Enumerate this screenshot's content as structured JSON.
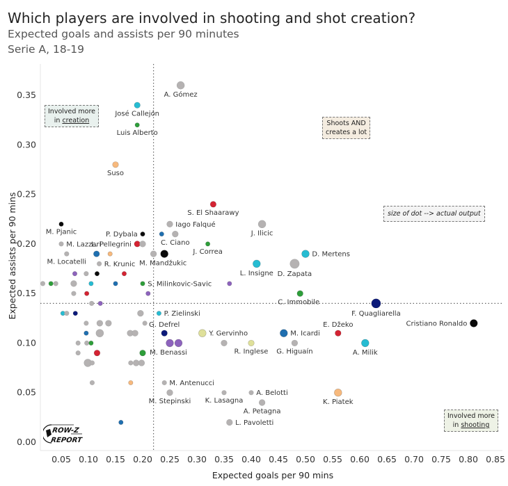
{
  "header": {
    "title": "Which players are involved in shooting and shot creation?",
    "subtitle": "Expected goals and assists per 90 minutes",
    "season": "Serie A, 18-19"
  },
  "annotations": {
    "creation": {
      "line1": "Involved more",
      "prefix": "in ",
      "emph": "creation"
    },
    "both": {
      "line1": "Shoots AND",
      "line2": "creates a lot"
    },
    "size_note": "size of dot --> actual output",
    "shooting": {
      "line1": "Involved more",
      "prefix": "in ",
      "emph": "shooting"
    }
  },
  "logo": {
    "line1": "ROW-Z",
    "line2": "REPORT"
  },
  "colors": {
    "grey": "#b5b2b2",
    "cyan": "#26bcd2",
    "green": "#2e9e3a",
    "red": "#d42332",
    "black": "#0a0a0a",
    "blue": "#1f6fb0",
    "navy": "#0c1a7a",
    "purple": "#8d63bd",
    "orange": "#f7b97d",
    "yellow": "#dfe09a"
  },
  "chart_data": {
    "type": "scatter",
    "title": "Which players are involved in shooting and shot creation?",
    "xlabel": "Expected goals per 90 mins",
    "ylabel": "Expected assists per 90 mins",
    "xlim": [
      0.0,
      0.86
    ],
    "ylim": [
      0.0,
      0.37
    ],
    "xticks": [
      "0.05",
      "0.10",
      "0.15",
      "0.20",
      "0.25",
      "0.30",
      "0.35",
      "0.40",
      "0.45",
      "0.50",
      "0.55",
      "0.60",
      "0.65",
      "0.70",
      "0.75",
      "0.80",
      "0.85"
    ],
    "yticks": [
      "0.00",
      "0.05",
      "0.10",
      "0.15",
      "0.20",
      "0.25",
      "0.30",
      "0.35"
    ],
    "reference_lines": {
      "x_avg": 0.22,
      "y_avg": 0.14
    },
    "grid": false,
    "points": [
      {
        "name": "A. Gómez",
        "x": 0.27,
        "y": 0.36,
        "size": "m",
        "color": "grey",
        "label_pos": "below"
      },
      {
        "name": "José Callejón",
        "x": 0.19,
        "y": 0.34,
        "size": "s",
        "color": "cyan",
        "label_pos": "below"
      },
      {
        "name": "Luis Alberto",
        "x": 0.19,
        "y": 0.32,
        "size": "xs",
        "color": "green",
        "label_pos": "below"
      },
      {
        "name": "Suso",
        "x": 0.15,
        "y": 0.28,
        "size": "s",
        "color": "orange",
        "label_pos": "below"
      },
      {
        "name": "S. El Shaarawy",
        "x": 0.33,
        "y": 0.24,
        "size": "s",
        "color": "red",
        "label_pos": "below"
      },
      {
        "name": "Iago Falqué",
        "x": 0.25,
        "y": 0.22,
        "size": "s",
        "color": "grey",
        "label_pos": "right"
      },
      {
        "name": "J. Ilicic",
        "x": 0.42,
        "y": 0.22,
        "size": "m",
        "color": "grey",
        "label_pos": "below"
      },
      {
        "name": "M. Pjanic",
        "x": 0.05,
        "y": 0.22,
        "size": "xs",
        "color": "black",
        "label_pos": "below"
      },
      {
        "name": "P. Dybala",
        "x": 0.2,
        "y": 0.21,
        "size": "xs",
        "color": "black",
        "label_pos": "left"
      },
      {
        "name": "",
        "x": 0.235,
        "y": 0.21,
        "size": "xs",
        "color": "blue",
        "label_pos": "none"
      },
      {
        "name": "C. Ciano",
        "x": 0.26,
        "y": 0.21,
        "size": "s",
        "color": "grey",
        "label_pos": "below"
      },
      {
        "name": "M. Lazzari",
        "x": 0.05,
        "y": 0.2,
        "size": "xs",
        "color": "grey",
        "label_pos": "right"
      },
      {
        "name": "L. Pellegrini",
        "x": 0.19,
        "y": 0.2,
        "size": "s",
        "color": "red",
        "label_pos": "left"
      },
      {
        "name": "",
        "x": 0.2,
        "y": 0.2,
        "size": "s",
        "color": "grey",
        "label_pos": "none"
      },
      {
        "name": "J. Correa",
        "x": 0.32,
        "y": 0.2,
        "size": "xs",
        "color": "green",
        "label_pos": "below"
      },
      {
        "name": "M. Locatelli",
        "x": 0.06,
        "y": 0.19,
        "size": "xs",
        "color": "grey",
        "label_pos": "below"
      },
      {
        "name": "",
        "x": 0.115,
        "y": 0.19,
        "size": "s",
        "color": "blue",
        "label_pos": "none"
      },
      {
        "name": "",
        "x": 0.14,
        "y": 0.19,
        "size": "xs",
        "color": "orange",
        "label_pos": "none"
      },
      {
        "name": "",
        "x": 0.22,
        "y": 0.19,
        "size": "s",
        "color": "grey",
        "label_pos": "none"
      },
      {
        "name": "M. Mandžukic",
        "x": 0.24,
        "y": 0.19,
        "size": "m",
        "color": "black",
        "label_pos": "below-left"
      },
      {
        "name": "D. Mertens",
        "x": 0.5,
        "y": 0.19,
        "size": "m",
        "color": "cyan",
        "label_pos": "right"
      },
      {
        "name": "R. Krunic",
        "x": 0.12,
        "y": 0.18,
        "size": "xs",
        "color": "grey",
        "label_pos": "right"
      },
      {
        "name": "L. Insigne",
        "x": 0.41,
        "y": 0.18,
        "size": "m",
        "color": "cyan",
        "label_pos": "below"
      },
      {
        "name": "D. Zapata",
        "x": 0.48,
        "y": 0.18,
        "size": "l",
        "color": "grey",
        "label_pos": "below"
      },
      {
        "name": "",
        "x": 0.075,
        "y": 0.17,
        "size": "xs",
        "color": "purple",
        "label_pos": "none"
      },
      {
        "name": "",
        "x": 0.096,
        "y": 0.17,
        "size": "xs",
        "color": "grey",
        "label_pos": "none"
      },
      {
        "name": "",
        "x": 0.116,
        "y": 0.17,
        "size": "xs",
        "color": "black",
        "label_pos": "none"
      },
      {
        "name": "",
        "x": 0.166,
        "y": 0.17,
        "size": "xs",
        "color": "red",
        "label_pos": "none"
      },
      {
        "name": "",
        "x": 0.016,
        "y": 0.16,
        "size": "xs",
        "color": "grey",
        "label_pos": "none"
      },
      {
        "name": "",
        "x": 0.031,
        "y": 0.16,
        "size": "xs",
        "color": "green",
        "label_pos": "none"
      },
      {
        "name": "",
        "x": 0.04,
        "y": 0.16,
        "size": "xs",
        "color": "grey",
        "label_pos": "none"
      },
      {
        "name": "",
        "x": 0.073,
        "y": 0.16,
        "size": "s",
        "color": "grey",
        "label_pos": "none"
      },
      {
        "name": "",
        "x": 0.105,
        "y": 0.16,
        "size": "xs",
        "color": "cyan",
        "label_pos": "none"
      },
      {
        "name": "",
        "x": 0.15,
        "y": 0.16,
        "size": "xs",
        "color": "blue",
        "label_pos": "none"
      },
      {
        "name": "S. Milinkovic-Savic",
        "x": 0.2,
        "y": 0.16,
        "size": "xs",
        "color": "green",
        "label_pos": "right"
      },
      {
        "name": "",
        "x": 0.36,
        "y": 0.16,
        "size": "xs",
        "color": "purple",
        "label_pos": "none"
      },
      {
        "name": "",
        "x": 0.073,
        "y": 0.15,
        "size": "xs",
        "color": "grey",
        "label_pos": "none"
      },
      {
        "name": "",
        "x": 0.097,
        "y": 0.15,
        "size": "xs",
        "color": "red",
        "label_pos": "none"
      },
      {
        "name": "",
        "x": 0.21,
        "y": 0.15,
        "size": "xs",
        "color": "purple",
        "label_pos": "none"
      },
      {
        "name": "C. Immobile",
        "x": 0.49,
        "y": 0.15,
        "size": "s",
        "color": "green",
        "label_pos": "below-left"
      },
      {
        "name": "",
        "x": 0.106,
        "y": 0.14,
        "size": "xs",
        "color": "grey",
        "label_pos": "none"
      },
      {
        "name": "",
        "x": 0.122,
        "y": 0.14,
        "size": "xs",
        "color": "purple",
        "label_pos": "none"
      },
      {
        "name": "F. Quagliarella",
        "x": 0.63,
        "y": 0.14,
        "size": "l",
        "color": "navy",
        "label_pos": "below"
      },
      {
        "name": "",
        "x": 0.053,
        "y": 0.13,
        "size": "xs",
        "color": "cyan",
        "label_pos": "none"
      },
      {
        "name": "",
        "x": 0.06,
        "y": 0.13,
        "size": "xs",
        "color": "grey",
        "label_pos": "none"
      },
      {
        "name": "",
        "x": 0.076,
        "y": 0.13,
        "size": "xs",
        "color": "navy",
        "label_pos": "none"
      },
      {
        "name": "",
        "x": 0.196,
        "y": 0.13,
        "size": "s",
        "color": "grey",
        "label_pos": "none"
      },
      {
        "name": "P. Zielinski",
        "x": 0.23,
        "y": 0.13,
        "size": "xs",
        "color": "cyan",
        "label_pos": "right"
      },
      {
        "name": "",
        "x": 0.096,
        "y": 0.12,
        "size": "xs",
        "color": "grey",
        "label_pos": "none"
      },
      {
        "name": "",
        "x": 0.121,
        "y": 0.12,
        "size": "s",
        "color": "grey",
        "label_pos": "none"
      },
      {
        "name": "",
        "x": 0.137,
        "y": 0.12,
        "size": "s",
        "color": "grey",
        "label_pos": "none"
      },
      {
        "name": "",
        "x": 0.204,
        "y": 0.12,
        "size": "xs",
        "color": "grey",
        "label_pos": "none"
      },
      {
        "name": "Cristiano Ronaldo",
        "x": 0.81,
        "y": 0.12,
        "size": "m",
        "color": "black",
        "label_pos": "left"
      },
      {
        "name": "",
        "x": 0.096,
        "y": 0.11,
        "size": "xs",
        "color": "blue",
        "label_pos": "none"
      },
      {
        "name": "",
        "x": 0.121,
        "y": 0.11,
        "size": "m",
        "color": "grey",
        "label_pos": "none"
      },
      {
        "name": "",
        "x": 0.177,
        "y": 0.11,
        "size": "s",
        "color": "grey",
        "label_pos": "none"
      },
      {
        "name": "",
        "x": 0.186,
        "y": 0.11,
        "size": "s",
        "color": "grey",
        "label_pos": "none"
      },
      {
        "name": "G. Defrel",
        "x": 0.24,
        "y": 0.11,
        "size": "s",
        "color": "navy",
        "label_pos": "above"
      },
      {
        "name": "Y. Gervinho",
        "x": 0.31,
        "y": 0.11,
        "size": "m",
        "color": "yellow",
        "label_pos": "right"
      },
      {
        "name": "M. Icardi",
        "x": 0.46,
        "y": 0.11,
        "size": "m",
        "color": "blue",
        "label_pos": "right"
      },
      {
        "name": "E. Džeko",
        "x": 0.56,
        "y": 0.11,
        "size": "s",
        "color": "red",
        "label_pos": "above"
      },
      {
        "name": "",
        "x": 0.081,
        "y": 0.1,
        "size": "xs",
        "color": "grey",
        "label_pos": "none"
      },
      {
        "name": "",
        "x": 0.097,
        "y": 0.1,
        "size": "xs",
        "color": "grey",
        "label_pos": "none"
      },
      {
        "name": "",
        "x": 0.105,
        "y": 0.1,
        "size": "xs",
        "color": "green",
        "label_pos": "none"
      },
      {
        "name": "M. Benassi",
        "x": 0.25,
        "y": 0.1,
        "size": "m",
        "color": "purple",
        "label_pos": "below-left"
      },
      {
        "name": "",
        "x": 0.266,
        "y": 0.1,
        "size": "m",
        "color": "purple",
        "label_pos": "none"
      },
      {
        "name": "",
        "x": 0.35,
        "y": 0.1,
        "size": "s",
        "color": "grey",
        "label_pos": "none"
      },
      {
        "name": "R. Inglese",
        "x": 0.4,
        "y": 0.1,
        "size": "s",
        "color": "yellow",
        "label_pos": "below"
      },
      {
        "name": "G. Higuaín",
        "x": 0.48,
        "y": 0.1,
        "size": "s",
        "color": "grey",
        "label_pos": "below"
      },
      {
        "name": "A. Milik",
        "x": 0.61,
        "y": 0.1,
        "size": "m",
        "color": "cyan",
        "label_pos": "below"
      },
      {
        "name": "",
        "x": 0.081,
        "y": 0.09,
        "size": "xs",
        "color": "grey",
        "label_pos": "none"
      },
      {
        "name": "",
        "x": 0.116,
        "y": 0.09,
        "size": "s",
        "color": "red",
        "label_pos": "none"
      },
      {
        "name": "",
        "x": 0.2,
        "y": 0.09,
        "size": "s",
        "color": "green",
        "label_pos": "none"
      },
      {
        "name": "",
        "x": 0.099,
        "y": 0.08,
        "size": "m",
        "color": "grey",
        "label_pos": "none"
      },
      {
        "name": "",
        "x": 0.107,
        "y": 0.08,
        "size": "xs",
        "color": "grey",
        "label_pos": "none"
      },
      {
        "name": "",
        "x": 0.178,
        "y": 0.08,
        "size": "xs",
        "color": "grey",
        "label_pos": "none"
      },
      {
        "name": "",
        "x": 0.188,
        "y": 0.08,
        "size": "s",
        "color": "grey",
        "label_pos": "none"
      },
      {
        "name": "",
        "x": 0.198,
        "y": 0.08,
        "size": "s",
        "color": "grey",
        "label_pos": "none"
      },
      {
        "name": "",
        "x": 0.107,
        "y": 0.06,
        "size": "xs",
        "color": "grey",
        "label_pos": "none"
      },
      {
        "name": "",
        "x": 0.178,
        "y": 0.06,
        "size": "xs",
        "color": "orange",
        "label_pos": "none"
      },
      {
        "name": "M. Antenucci",
        "x": 0.24,
        "y": 0.06,
        "size": "xs",
        "color": "grey",
        "label_pos": "right"
      },
      {
        "name": "M. Stepinski",
        "x": 0.25,
        "y": 0.05,
        "size": "s",
        "color": "grey",
        "label_pos": "below"
      },
      {
        "name": "K. Lasagna",
        "x": 0.35,
        "y": 0.05,
        "size": "xs",
        "color": "grey",
        "label_pos": "below"
      },
      {
        "name": "A. Belotti",
        "x": 0.4,
        "y": 0.05,
        "size": "xs",
        "color": "grey",
        "label_pos": "right"
      },
      {
        "name": "K. Piatek",
        "x": 0.56,
        "y": 0.05,
        "size": "m",
        "color": "orange",
        "label_pos": "below"
      },
      {
        "name": "A. Petagna",
        "x": 0.42,
        "y": 0.04,
        "size": "s",
        "color": "grey",
        "label_pos": "below"
      },
      {
        "name": "L. Pavoletti",
        "x": 0.36,
        "y": 0.02,
        "size": "s",
        "color": "grey",
        "label_pos": "right"
      },
      {
        "name": "",
        "x": 0.16,
        "y": 0.02,
        "size": "xs",
        "color": "blue",
        "label_pos": "none"
      }
    ]
  }
}
